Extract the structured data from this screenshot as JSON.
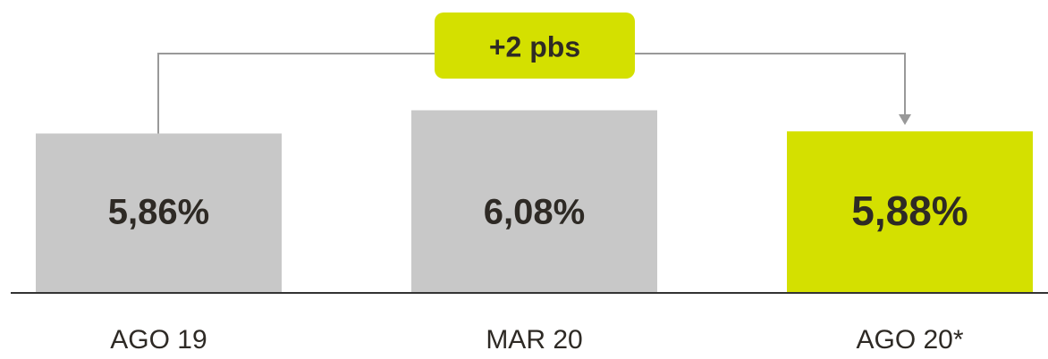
{
  "chart_data": {
    "type": "bar",
    "categories": [
      "AGO 19",
      "MAR 20",
      "AGO 20*"
    ],
    "values": [
      5.86,
      6.08,
      5.88
    ],
    "value_labels": [
      "5,86%",
      "6,08%",
      "5,88%"
    ],
    "colors": [
      "#c8c8c8",
      "#c8c8c8",
      "#d4e000"
    ],
    "ylim": [
      4.35,
      6.6
    ],
    "annotation": "+2 pbs"
  }
}
